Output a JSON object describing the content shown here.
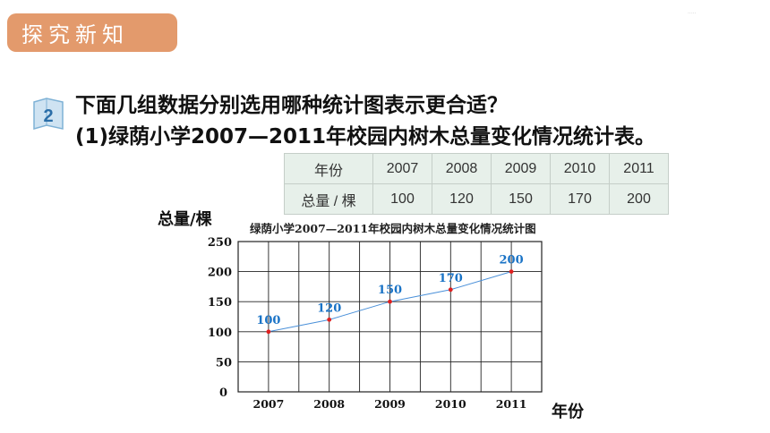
{
  "section_tag": "探究新知",
  "question_number": "2",
  "question_line1": "下面几组数据分别选用哪种统计图表示更合适？",
  "question_line2": "(1)绿荫小学2007—2011年校园内树木总量变化情况统计表。",
  "table": {
    "row_header_year": "年份",
    "row_header_total": "总量 / 棵",
    "years": [
      "2007",
      "2008",
      "2009",
      "2010",
      "2011"
    ],
    "totals": [
      "100",
      "120",
      "150",
      "170",
      "200"
    ]
  },
  "colors": {
    "tag_bg": "#e39a6c",
    "table_bg": "#e7f0ea",
    "line": "#4a90d9",
    "point": "#e02020",
    "data_label": "#1a73c6"
  },
  "chart_data": {
    "type": "line",
    "title": "绿荫小学2007—2011年校园内树木总量变化情况统计图",
    "xlabel": "年份",
    "ylabel": "总量/棵",
    "categories": [
      "2007",
      "2008",
      "2009",
      "2010",
      "2011"
    ],
    "values": [
      100,
      120,
      150,
      170,
      200
    ],
    "ylim": [
      0,
      250
    ],
    "yticks": [
      0,
      50,
      100,
      150,
      200,
      250
    ],
    "grid": true
  }
}
